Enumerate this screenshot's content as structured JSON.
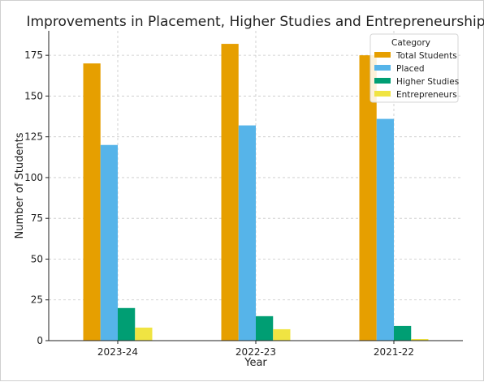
{
  "chart_data": {
    "type": "bar",
    "title": "Improvements in Placement, Higher Studies and Entrepreneurship",
    "xlabel": "Year",
    "ylabel": "Number of Students",
    "categories": [
      "2023-24",
      "2022-23",
      "2021-22"
    ],
    "ylim": [
      0,
      190
    ],
    "yticks": [
      0,
      25,
      50,
      75,
      100,
      125,
      150,
      175
    ],
    "grid": true,
    "legend": {
      "title": "Category",
      "placement": "top-right"
    },
    "series": [
      {
        "name": "Total Students",
        "color": "#E69F00",
        "values": [
          170,
          182,
          175
        ]
      },
      {
        "name": "Placed",
        "color": "#56B4E9",
        "values": [
          120,
          132,
          136
        ]
      },
      {
        "name": "Higher Studies",
        "color": "#009E73",
        "values": [
          20,
          15,
          9
        ]
      },
      {
        "name": "Entrepreneurs",
        "color": "#F0E442",
        "values": [
          8,
          7,
          1
        ]
      }
    ]
  }
}
